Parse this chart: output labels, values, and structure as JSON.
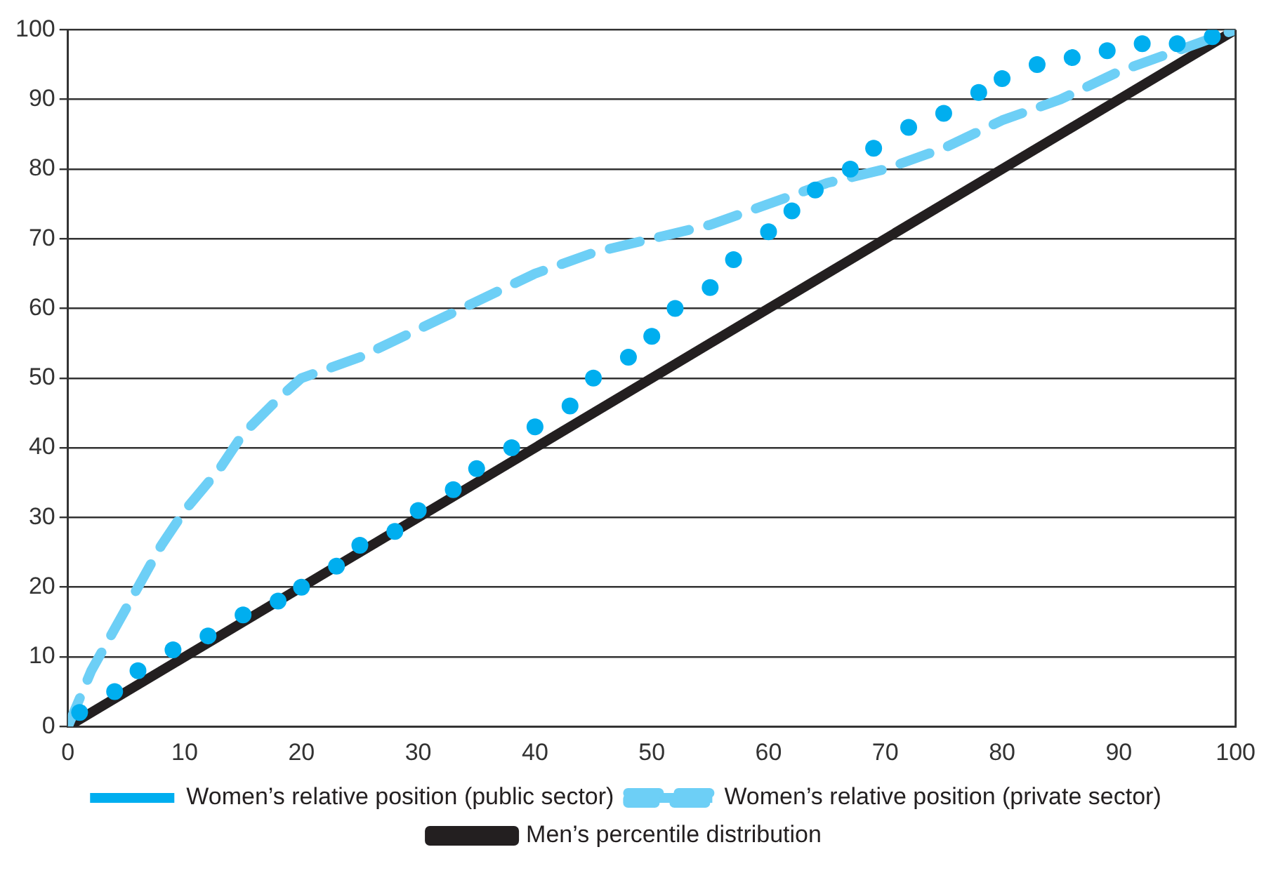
{
  "chart_data": {
    "type": "line",
    "xlim": [
      0,
      100
    ],
    "xticks": [
      0,
      10,
      20,
      30,
      40,
      50,
      60,
      70,
      80,
      90,
      100
    ],
    "ylim": [
      0,
      100
    ],
    "yticks": [
      0,
      10,
      20,
      30,
      40,
      50,
      60,
      70,
      80,
      90,
      100
    ],
    "grid": "y",
    "legend": "bottom",
    "series": [
      {
        "name": "Women’s relative position (private sector)",
        "color": "#6dcff6",
        "line_style": "dashed",
        "marker": "none",
        "x": [
          0,
          2,
          5,
          8,
          10,
          13,
          15,
          18,
          20,
          25,
          30,
          35,
          40,
          45,
          50,
          55,
          60,
          65,
          70,
          75,
          80,
          85,
          90,
          95,
          100
        ],
        "values": [
          0,
          8,
          17,
          26,
          31,
          37,
          42,
          47,
          50,
          53,
          57,
          61,
          65,
          68,
          70,
          72,
          75,
          78,
          80,
          83,
          87,
          90,
          94,
          97,
          100
        ]
      },
      {
        "name": "Women’s relative position (public sector)",
        "color": "#00aeef",
        "type": "scatter",
        "marker": "circle",
        "x": [
          1,
          4,
          6,
          9,
          12,
          15,
          18,
          20,
          23,
          25,
          28,
          30,
          33,
          35,
          38,
          40,
          43,
          45,
          48,
          50,
          52,
          55,
          57,
          60,
          62,
          64,
          67,
          69,
          72,
          75,
          78,
          80,
          83,
          86,
          89,
          92,
          95,
          98
        ],
        "values": [
          2,
          5,
          8,
          11,
          13,
          16,
          18,
          20,
          23,
          26,
          28,
          31,
          34,
          37,
          40,
          43,
          46,
          50,
          53,
          56,
          60,
          63,
          67,
          71,
          74,
          77,
          80,
          83,
          86,
          88,
          91,
          93,
          95,
          96,
          97,
          98,
          98,
          99
        ]
      },
      {
        "name": "Men’s percentile distribution",
        "color": "#231f20",
        "line_style": "solid",
        "marker": "none",
        "x": [
          0,
          100
        ],
        "values": [
          0,
          100
        ]
      }
    ]
  }
}
